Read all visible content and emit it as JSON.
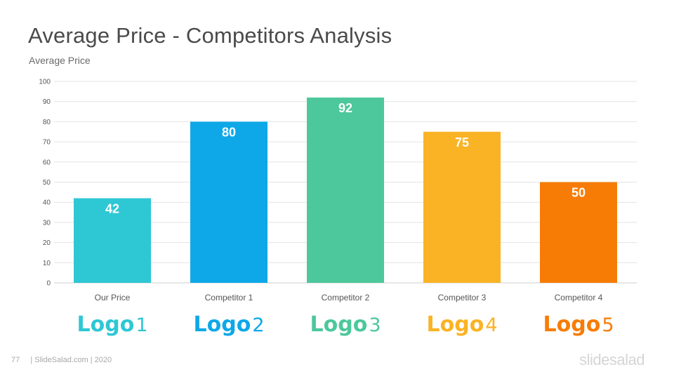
{
  "slide": {
    "title": "Average Price - Competitors Analysis",
    "page_number": "77",
    "footer_text": "| SlideSalad.com | 2020",
    "brand": "slidesalad"
  },
  "chart_data": {
    "type": "bar",
    "title": "Average Price - Competitors Analysis",
    "ylabel": "Average Price",
    "xlabel": "",
    "categories": [
      "Our Price",
      "Competitor  1",
      "Competitor  2",
      "Competitor  3",
      "Competitor  4"
    ],
    "values": [
      42,
      80,
      92,
      75,
      50
    ],
    "data_labels": [
      "42",
      "80",
      "92",
      "75",
      "50"
    ],
    "colors": [
      "#2ec7d4",
      "#0ea8e8",
      "#4cc89c",
      "#fab325",
      "#f77c06"
    ],
    "ylim": [
      0,
      100
    ],
    "yticks": [
      0,
      10,
      20,
      30,
      40,
      50,
      60,
      70,
      80,
      90,
      100
    ],
    "ytick_labels": [
      "0",
      "10",
      "20",
      "30",
      "40",
      "50",
      "60",
      "70",
      "80",
      "90",
      "100"
    ],
    "grid": true,
    "legend": "none",
    "logos": [
      "Logo1",
      "Logo2",
      "Logo3",
      "Logo4",
      "Logo5"
    ]
  }
}
